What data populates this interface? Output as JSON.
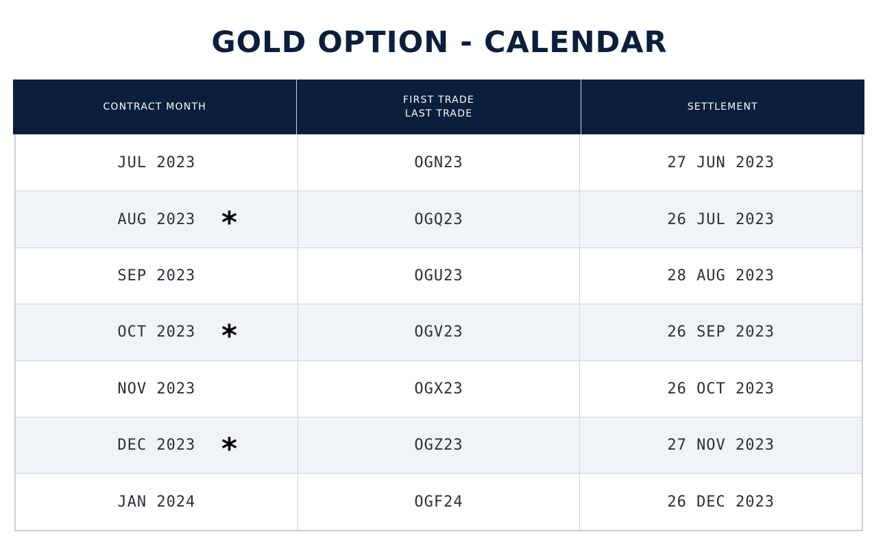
{
  "title": "GOLD OPTION - CALENDAR",
  "columns": {
    "contract_month": "CONTRACT MONTH",
    "first_trade": "FIRST TRADE",
    "last_trade": "LAST TRADE",
    "settlement": "SETTLEMENT"
  },
  "rows": [
    {
      "contract_month": "JUL 2023",
      "marker": "",
      "code": "OGN23",
      "settlement": "27 JUN 2023"
    },
    {
      "contract_month": "AUG 2023",
      "marker": "*",
      "code": "OGQ23",
      "settlement": "26 JUL 2023"
    },
    {
      "contract_month": "SEP 2023",
      "marker": "",
      "code": "OGU23",
      "settlement": "28 AUG 2023"
    },
    {
      "contract_month": "OCT 2023",
      "marker": "*",
      "code": "OGV23",
      "settlement": "26 SEP 2023"
    },
    {
      "contract_month": "NOV 2023",
      "marker": "",
      "code": "OGX23",
      "settlement": "26 OCT 2023"
    },
    {
      "contract_month": "DEC 2023",
      "marker": "*",
      "code": "OGZ23",
      "settlement": "27 NOV 2023"
    },
    {
      "contract_month": "JAN 2024",
      "marker": "",
      "code": "OGF24",
      "settlement": "26 DEC 2023"
    }
  ],
  "colors": {
    "header_bg": "#0a1f3c",
    "title": "#0a1f3c",
    "alt_row_bg": "#f1f4f7"
  }
}
